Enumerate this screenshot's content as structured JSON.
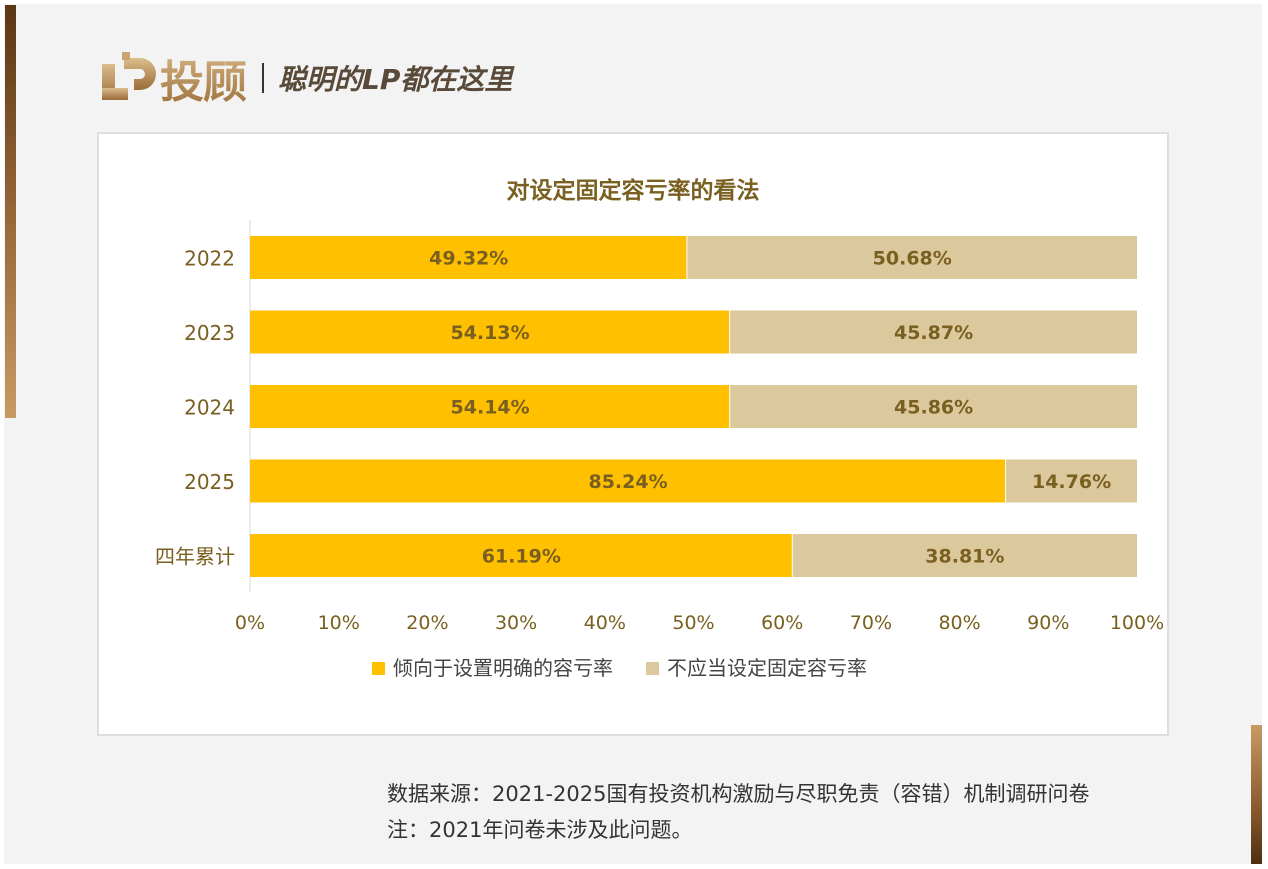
{
  "brand": {
    "logo_text": "投顾",
    "slogan": "聪明的LP都在这里",
    "colors": {
      "gold": "#b38a55",
      "accent_dark": "#5a3716"
    }
  },
  "chart_data": {
    "type": "bar",
    "orientation": "horizontal",
    "stacked": true,
    "title": "对设定固定容亏率的看法",
    "categories": [
      "2022",
      "2023",
      "2024",
      "2025",
      "四年累计"
    ],
    "series": [
      {
        "name": "倾向于设置明确的容亏率",
        "color": "#ffc000",
        "values": [
          49.32,
          54.13,
          54.14,
          85.24,
          61.19
        ]
      },
      {
        "name": "不应当设定固定容亏率",
        "color": "#dbc89d",
        "values": [
          50.68,
          45.87,
          45.86,
          14.76,
          38.81
        ]
      }
    ],
    "data_labels": [
      [
        "49.32%",
        "54.13%",
        "54.14%",
        "85.24%",
        "61.19%"
      ],
      [
        "50.68%",
        "45.87%",
        "45.86%",
        "14.76%",
        "38.81%"
      ]
    ],
    "x_ticks": [
      "0%",
      "10%",
      "20%",
      "30%",
      "40%",
      "50%",
      "60%",
      "70%",
      "80%",
      "90%",
      "100%"
    ],
    "xlim": [
      0,
      100
    ],
    "grid": false,
    "legend_position": "bottom",
    "label_color": "#7a6020"
  },
  "footnotes": {
    "source": "数据来源：2021-2025国有投资机构激励与尽职免责（容错）机制调研问卷",
    "note": "注：2021年问卷未涉及此问题。"
  }
}
